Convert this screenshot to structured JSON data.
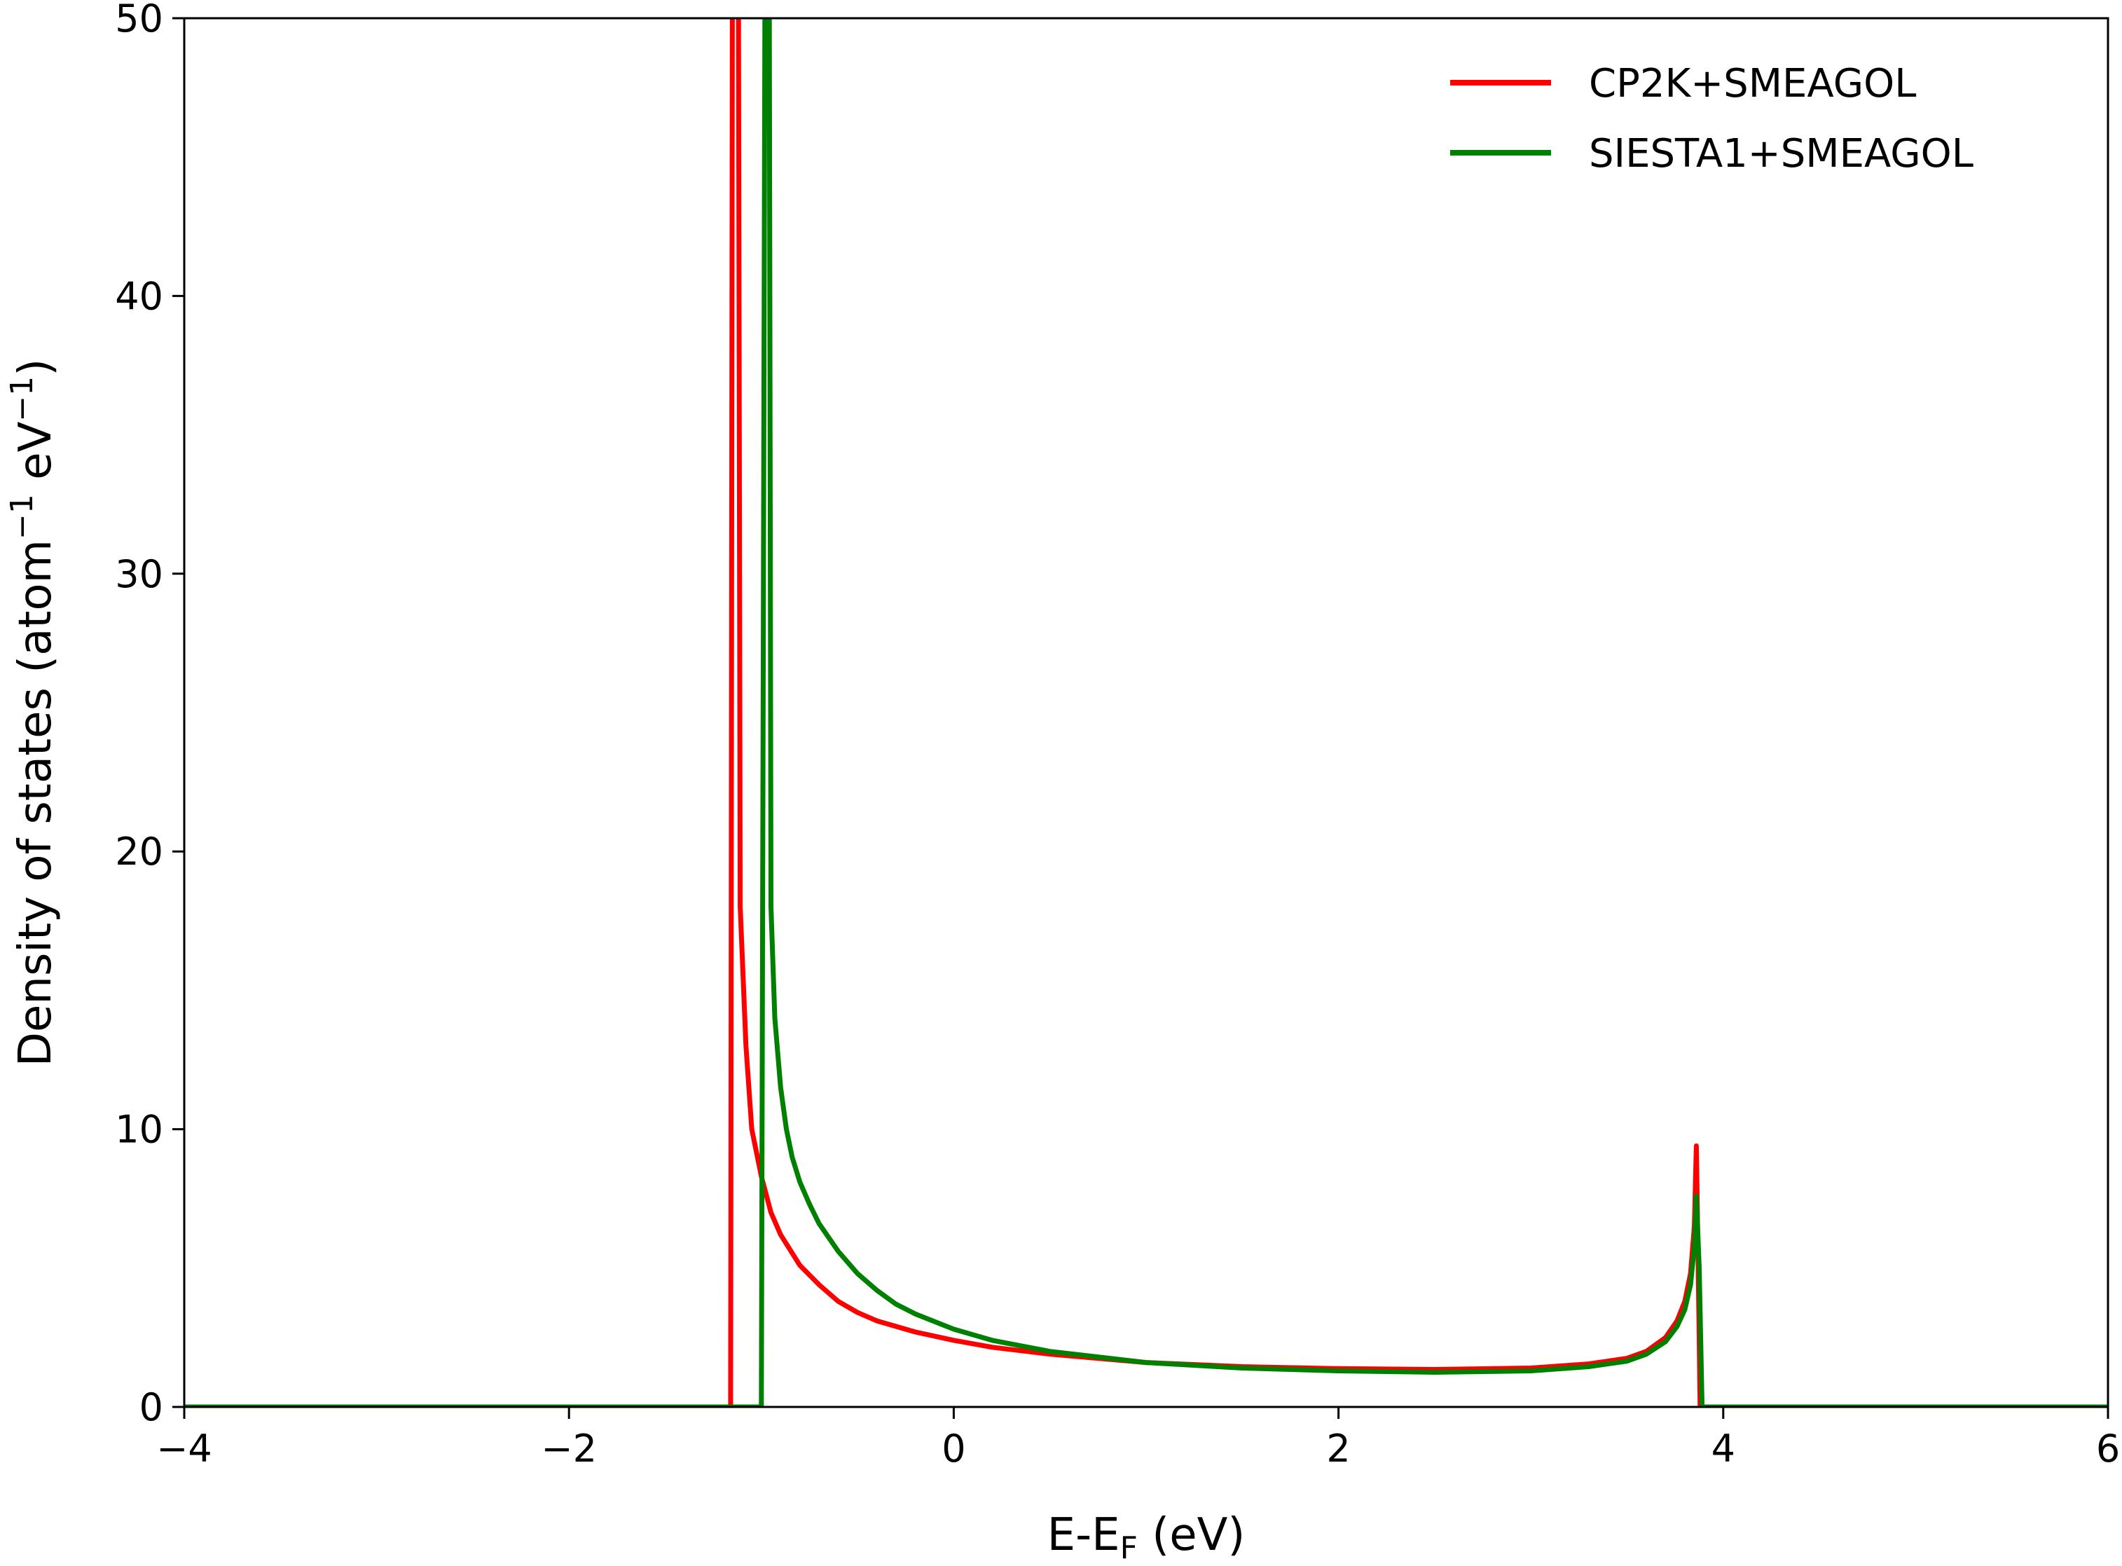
{
  "chart_data": {
    "type": "line",
    "xlabel": "E-E",
    "xlabel_sub": "F",
    "xlabel_unit": " (eV)",
    "ylabel": "Density of states (atom",
    "ylabel_sup1": "−1",
    "ylabel_mid": " eV",
    "ylabel_sup2": "−1",
    "ylabel_end": ")",
    "xlim": [
      -4,
      6
    ],
    "ylim": [
      0,
      50
    ],
    "xticks": [
      -4,
      -2,
      0,
      2,
      4,
      6
    ],
    "xtick_labels": [
      "−4",
      "−2",
      "0",
      "2",
      "4",
      "6"
    ],
    "yticks": [
      0,
      10,
      20,
      30,
      40,
      50
    ],
    "ytick_labels": [
      "0",
      "10",
      "20",
      "30",
      "40",
      "50"
    ],
    "grid": false,
    "legend_position": "top-right",
    "series": [
      {
        "name": "CP2K+SMEAGOL",
        "color": "#ff0000",
        "points": [
          [
            -4.0,
            0
          ],
          [
            -1.16,
            0
          ],
          [
            -1.15,
            55
          ],
          [
            -1.12,
            55
          ],
          [
            -1.11,
            18
          ],
          [
            -1.08,
            13
          ],
          [
            -1.05,
            10
          ],
          [
            -1.0,
            8.3
          ],
          [
            -0.95,
            7.0
          ],
          [
            -0.9,
            6.2
          ],
          [
            -0.8,
            5.1
          ],
          [
            -0.7,
            4.4
          ],
          [
            -0.6,
            3.8
          ],
          [
            -0.5,
            3.4
          ],
          [
            -0.4,
            3.1
          ],
          [
            -0.2,
            2.7
          ],
          [
            0.0,
            2.4
          ],
          [
            0.2,
            2.15
          ],
          [
            0.5,
            1.9
          ],
          [
            1.0,
            1.6
          ],
          [
            1.5,
            1.45
          ],
          [
            2.0,
            1.38
          ],
          [
            2.5,
            1.35
          ],
          [
            3.0,
            1.4
          ],
          [
            3.3,
            1.55
          ],
          [
            3.5,
            1.75
          ],
          [
            3.6,
            2.0
          ],
          [
            3.7,
            2.5
          ],
          [
            3.76,
            3.1
          ],
          [
            3.8,
            3.8
          ],
          [
            3.83,
            4.8
          ],
          [
            3.85,
            6.5
          ],
          [
            3.86,
            9.4
          ],
          [
            3.87,
            5.0
          ],
          [
            3.88,
            0
          ],
          [
            6.0,
            0
          ]
        ]
      },
      {
        "name": "SIESTA1+SMEAGOL",
        "color": "#008000",
        "points": [
          [
            -4.0,
            0
          ],
          [
            -1.0,
            0
          ],
          [
            -0.98,
            55
          ],
          [
            -0.96,
            55
          ],
          [
            -0.95,
            18
          ],
          [
            -0.93,
            14
          ],
          [
            -0.9,
            11.5
          ],
          [
            -0.87,
            10
          ],
          [
            -0.84,
            9
          ],
          [
            -0.8,
            8.1
          ],
          [
            -0.75,
            7.3
          ],
          [
            -0.7,
            6.6
          ],
          [
            -0.6,
            5.6
          ],
          [
            -0.5,
            4.8
          ],
          [
            -0.4,
            4.2
          ],
          [
            -0.3,
            3.7
          ],
          [
            -0.2,
            3.35
          ],
          [
            0.0,
            2.8
          ],
          [
            0.2,
            2.4
          ],
          [
            0.5,
            2.0
          ],
          [
            1.0,
            1.6
          ],
          [
            1.5,
            1.4
          ],
          [
            2.0,
            1.3
          ],
          [
            2.5,
            1.25
          ],
          [
            3.0,
            1.3
          ],
          [
            3.3,
            1.45
          ],
          [
            3.5,
            1.65
          ],
          [
            3.6,
            1.9
          ],
          [
            3.7,
            2.35
          ],
          [
            3.76,
            2.9
          ],
          [
            3.8,
            3.5
          ],
          [
            3.83,
            4.4
          ],
          [
            3.85,
            5.8
          ],
          [
            3.86,
            7.6
          ],
          [
            3.875,
            5.0
          ],
          [
            3.89,
            0
          ],
          [
            6.0,
            0
          ]
        ]
      }
    ]
  }
}
